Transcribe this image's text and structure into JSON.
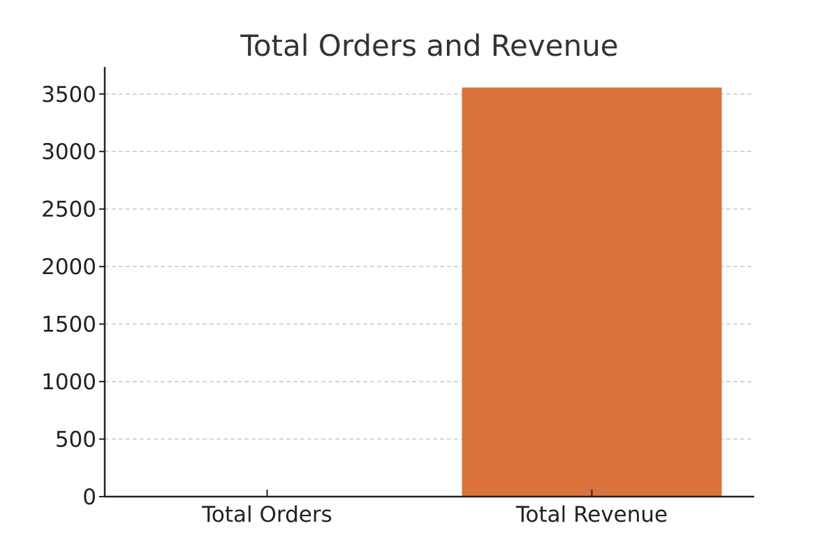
{
  "chart_data": {
    "type": "bar",
    "title": "Total Orders and Revenue",
    "xlabel": "",
    "ylabel": "",
    "categories": [
      "Total Orders",
      "Total Revenue"
    ],
    "values": [
      2,
      3556
    ],
    "ylim": [
      0,
      3735
    ],
    "yticks": [
      0,
      500,
      1000,
      1500,
      2000,
      2500,
      3000,
      3500
    ],
    "grid": true,
    "grid_axis": "y",
    "bar_colors": [
      "#1f77b4",
      "#d9723b"
    ]
  }
}
